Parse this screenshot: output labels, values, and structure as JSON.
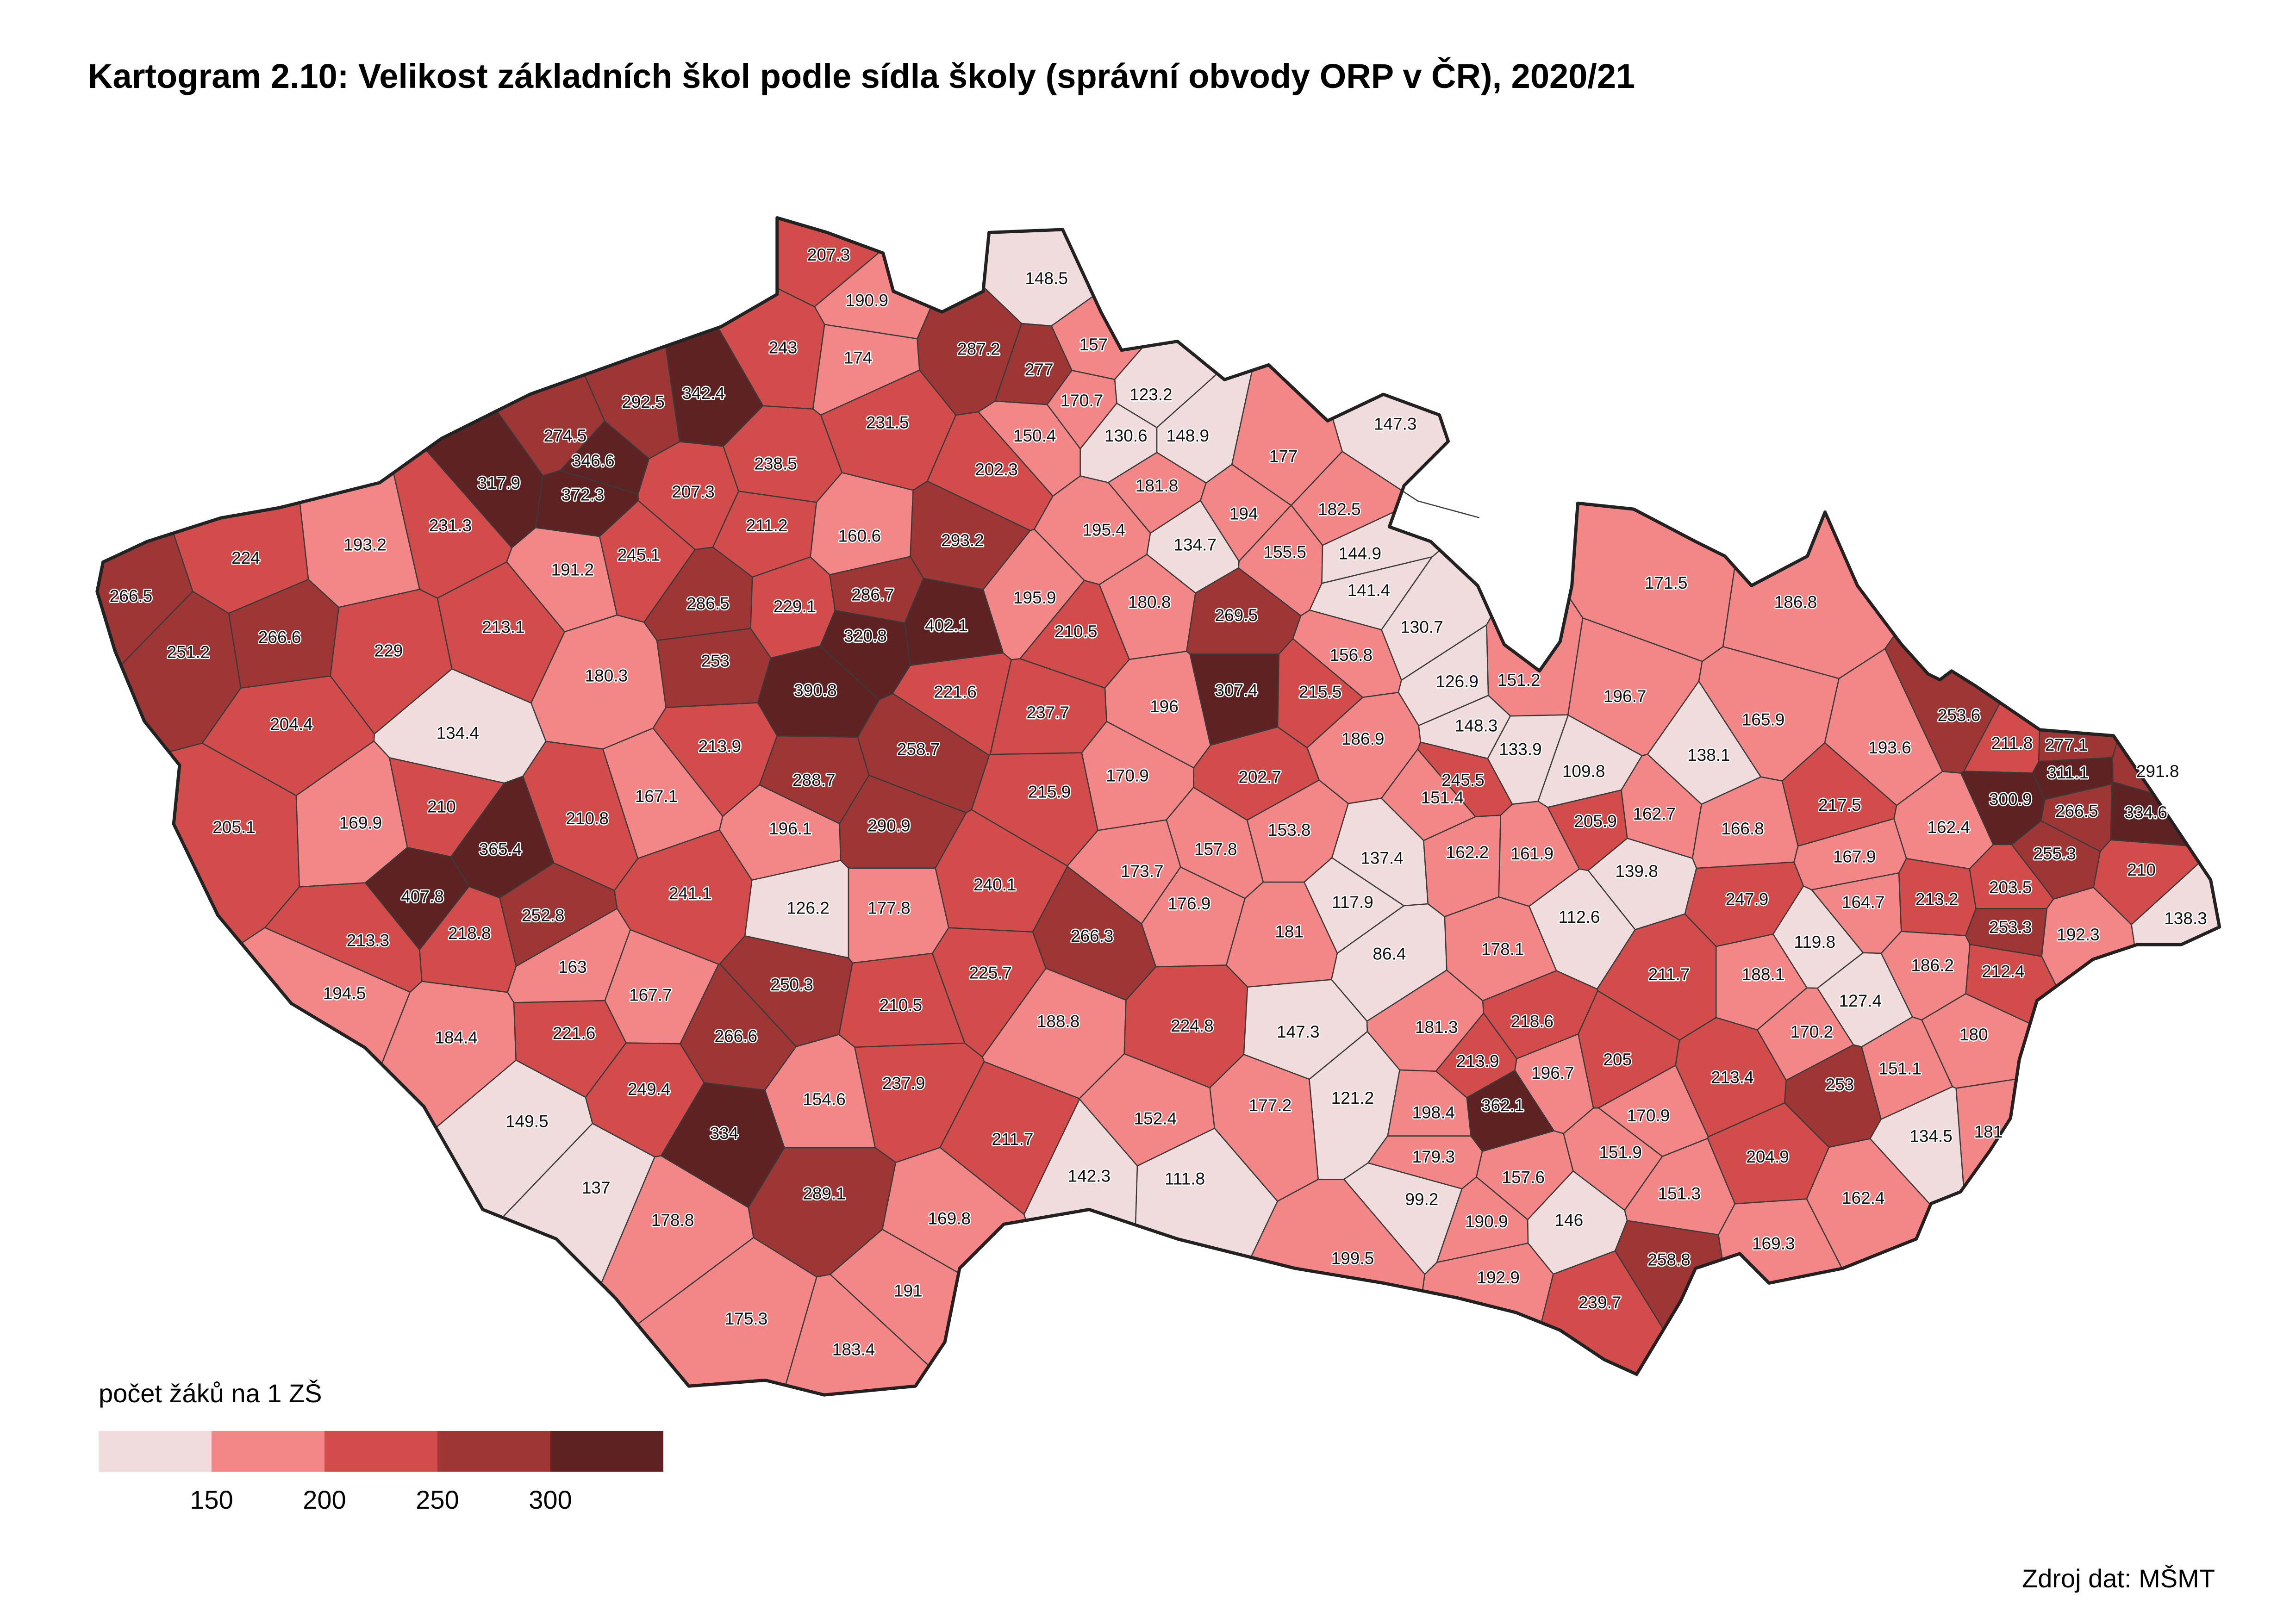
{
  "header": {
    "title": "Kartogram 2.10: Velikost základních škol podle sídla školy (správní obvody ORP v ČR), 2020/21"
  },
  "chart_data": {
    "type": "choropleth",
    "values": [
      207.3,
      190.9,
      148.5,
      243,
      174,
      287.2,
      277,
      157,
      123.2,
      170.7,
      342.4,
      292.5,
      274.5,
      231.5,
      150.4,
      130.6,
      148.9,
      147.3,
      346.6,
      317.9,
      372.3,
      207.3,
      238.5,
      202.3,
      181.8,
      177,
      231.3,
      211.2,
      160.6,
      293.2,
      195.4,
      194,
      182.5,
      224,
      193.2,
      191.2,
      245.1,
      134.7,
      155.5,
      144.9,
      266.5,
      286.5,
      229.1,
      286.7,
      195.9,
      141.4,
      171.5,
      186.8,
      213.1,
      180.3,
      229,
      266.6,
      251.2,
      253,
      320.8,
      402.1,
      210.5,
      180.8,
      269.5,
      130.7,
      156.8,
      126.9,
      151.2,
      196.7,
      390.8,
      221.6,
      196,
      307.4,
      215.5,
      237.7,
      148.3,
      204.4,
      134.4,
      165.9,
      253.6,
      211.8,
      277.1,
      186.9,
      133.9,
      109.8,
      138.1,
      193.6,
      291.8,
      213.9,
      258.7,
      311.1,
      300.9,
      170.9,
      202.7,
      215.9,
      288.7,
      245.5,
      167.1,
      151.4,
      217.5,
      266.5,
      334.6,
      205.1,
      169.9,
      210,
      210.8,
      153.8,
      290.9,
      196.1,
      205.9,
      162.7,
      166.8,
      162.4,
      365.4,
      157.8,
      137.4,
      162.2,
      161.9,
      167.9,
      255.3,
      173.7,
      139.8,
      247.9,
      164.7,
      213.2,
      203.5,
      210,
      241.1,
      240.1,
      176.9,
      407.8,
      252.8,
      126.2,
      177.8,
      117.9,
      112.6,
      253.3,
      192.3,
      138.3,
      213.3,
      218.8,
      266.3,
      181,
      119.8,
      178.1,
      86.4,
      163,
      250.3,
      211.7,
      188.1,
      186.2,
      212.4,
      225.7,
      167.7,
      127.4,
      194.5,
      188.8,
      224.8,
      210.5,
      266.6,
      147.3,
      181.3,
      218.6,
      180,
      184.4,
      221.6,
      170.2,
      213.9,
      196.7,
      205,
      151.1,
      213.4,
      253,
      249.4,
      237.9,
      362.1,
      154.6,
      121.2,
      177.2,
      170.9,
      149.5,
      152.4,
      198.4,
      211.7,
      134.5,
      181,
      334,
      179.3,
      151.9,
      142.3,
      111.8,
      204.9,
      137,
      289.1,
      157.6,
      151.3,
      99.2,
      178.8,
      169.8,
      190.9,
      146,
      162.4,
      169.3,
      199.5,
      258.8,
      191,
      192.9,
      175.3,
      239.7,
      183.4
    ],
    "legend": {
      "title": "počet žáků na 1 ZŠ",
      "breaks": [
        150,
        200,
        250,
        300
      ],
      "colors": [
        "#f0dcdc",
        "#f38686",
        "#d34c4c",
        "#9e3636",
        "#5f2222"
      ]
    }
  },
  "source": "Zdroj dat: MŠMT"
}
